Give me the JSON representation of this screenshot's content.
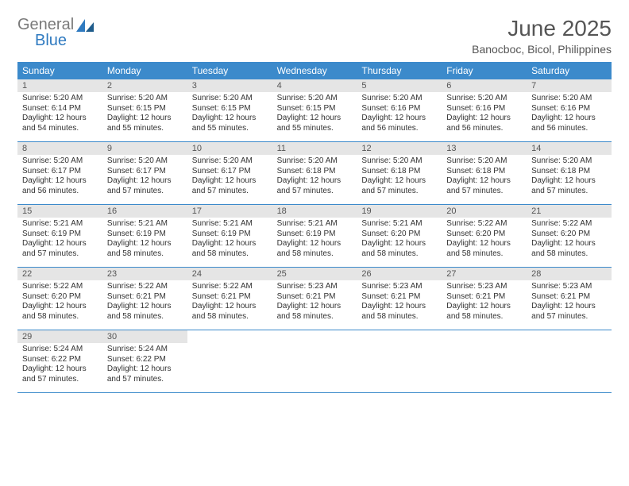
{
  "logo": {
    "text1": "General",
    "text2": "Blue"
  },
  "title": "June 2025",
  "subtitle": "Banocboc, Bicol, Philippines",
  "colors": {
    "header_bg": "#3c8acb",
    "header_text": "#ffffff",
    "daynum_bg": "#e5e5e5",
    "daynum_text": "#555555",
    "divider": "#3c8acb",
    "logo_gray": "#7a7a7a",
    "logo_blue": "#2f7ac0",
    "title_color": "#555555",
    "body_text": "#333333",
    "background": "#ffffff"
  },
  "typography": {
    "title_fontsize": 28,
    "subtitle_fontsize": 14,
    "weekday_fontsize": 12,
    "daynum_fontsize": 11,
    "cell_fontsize": 10
  },
  "weekdays": [
    "Sunday",
    "Monday",
    "Tuesday",
    "Wednesday",
    "Thursday",
    "Friday",
    "Saturday"
  ],
  "weeks": [
    [
      {
        "day": "1",
        "sunrise": "Sunrise: 5:20 AM",
        "sunset": "Sunset: 6:14 PM",
        "daylight": "Daylight: 12 hours and 54 minutes."
      },
      {
        "day": "2",
        "sunrise": "Sunrise: 5:20 AM",
        "sunset": "Sunset: 6:15 PM",
        "daylight": "Daylight: 12 hours and 55 minutes."
      },
      {
        "day": "3",
        "sunrise": "Sunrise: 5:20 AM",
        "sunset": "Sunset: 6:15 PM",
        "daylight": "Daylight: 12 hours and 55 minutes."
      },
      {
        "day": "4",
        "sunrise": "Sunrise: 5:20 AM",
        "sunset": "Sunset: 6:15 PM",
        "daylight": "Daylight: 12 hours and 55 minutes."
      },
      {
        "day": "5",
        "sunrise": "Sunrise: 5:20 AM",
        "sunset": "Sunset: 6:16 PM",
        "daylight": "Daylight: 12 hours and 56 minutes."
      },
      {
        "day": "6",
        "sunrise": "Sunrise: 5:20 AM",
        "sunset": "Sunset: 6:16 PM",
        "daylight": "Daylight: 12 hours and 56 minutes."
      },
      {
        "day": "7",
        "sunrise": "Sunrise: 5:20 AM",
        "sunset": "Sunset: 6:16 PM",
        "daylight": "Daylight: 12 hours and 56 minutes."
      }
    ],
    [
      {
        "day": "8",
        "sunrise": "Sunrise: 5:20 AM",
        "sunset": "Sunset: 6:17 PM",
        "daylight": "Daylight: 12 hours and 56 minutes."
      },
      {
        "day": "9",
        "sunrise": "Sunrise: 5:20 AM",
        "sunset": "Sunset: 6:17 PM",
        "daylight": "Daylight: 12 hours and 57 minutes."
      },
      {
        "day": "10",
        "sunrise": "Sunrise: 5:20 AM",
        "sunset": "Sunset: 6:17 PM",
        "daylight": "Daylight: 12 hours and 57 minutes."
      },
      {
        "day": "11",
        "sunrise": "Sunrise: 5:20 AM",
        "sunset": "Sunset: 6:18 PM",
        "daylight": "Daylight: 12 hours and 57 minutes."
      },
      {
        "day": "12",
        "sunrise": "Sunrise: 5:20 AM",
        "sunset": "Sunset: 6:18 PM",
        "daylight": "Daylight: 12 hours and 57 minutes."
      },
      {
        "day": "13",
        "sunrise": "Sunrise: 5:20 AM",
        "sunset": "Sunset: 6:18 PM",
        "daylight": "Daylight: 12 hours and 57 minutes."
      },
      {
        "day": "14",
        "sunrise": "Sunrise: 5:20 AM",
        "sunset": "Sunset: 6:18 PM",
        "daylight": "Daylight: 12 hours and 57 minutes."
      }
    ],
    [
      {
        "day": "15",
        "sunrise": "Sunrise: 5:21 AM",
        "sunset": "Sunset: 6:19 PM",
        "daylight": "Daylight: 12 hours and 57 minutes."
      },
      {
        "day": "16",
        "sunrise": "Sunrise: 5:21 AM",
        "sunset": "Sunset: 6:19 PM",
        "daylight": "Daylight: 12 hours and 58 minutes."
      },
      {
        "day": "17",
        "sunrise": "Sunrise: 5:21 AM",
        "sunset": "Sunset: 6:19 PM",
        "daylight": "Daylight: 12 hours and 58 minutes."
      },
      {
        "day": "18",
        "sunrise": "Sunrise: 5:21 AM",
        "sunset": "Sunset: 6:19 PM",
        "daylight": "Daylight: 12 hours and 58 minutes."
      },
      {
        "day": "19",
        "sunrise": "Sunrise: 5:21 AM",
        "sunset": "Sunset: 6:20 PM",
        "daylight": "Daylight: 12 hours and 58 minutes."
      },
      {
        "day": "20",
        "sunrise": "Sunrise: 5:22 AM",
        "sunset": "Sunset: 6:20 PM",
        "daylight": "Daylight: 12 hours and 58 minutes."
      },
      {
        "day": "21",
        "sunrise": "Sunrise: 5:22 AM",
        "sunset": "Sunset: 6:20 PM",
        "daylight": "Daylight: 12 hours and 58 minutes."
      }
    ],
    [
      {
        "day": "22",
        "sunrise": "Sunrise: 5:22 AM",
        "sunset": "Sunset: 6:20 PM",
        "daylight": "Daylight: 12 hours and 58 minutes."
      },
      {
        "day": "23",
        "sunrise": "Sunrise: 5:22 AM",
        "sunset": "Sunset: 6:21 PM",
        "daylight": "Daylight: 12 hours and 58 minutes."
      },
      {
        "day": "24",
        "sunrise": "Sunrise: 5:22 AM",
        "sunset": "Sunset: 6:21 PM",
        "daylight": "Daylight: 12 hours and 58 minutes."
      },
      {
        "day": "25",
        "sunrise": "Sunrise: 5:23 AM",
        "sunset": "Sunset: 6:21 PM",
        "daylight": "Daylight: 12 hours and 58 minutes."
      },
      {
        "day": "26",
        "sunrise": "Sunrise: 5:23 AM",
        "sunset": "Sunset: 6:21 PM",
        "daylight": "Daylight: 12 hours and 58 minutes."
      },
      {
        "day": "27",
        "sunrise": "Sunrise: 5:23 AM",
        "sunset": "Sunset: 6:21 PM",
        "daylight": "Daylight: 12 hours and 58 minutes."
      },
      {
        "day": "28",
        "sunrise": "Sunrise: 5:23 AM",
        "sunset": "Sunset: 6:21 PM",
        "daylight": "Daylight: 12 hours and 57 minutes."
      }
    ],
    [
      {
        "day": "29",
        "sunrise": "Sunrise: 5:24 AM",
        "sunset": "Sunset: 6:22 PM",
        "daylight": "Daylight: 12 hours and 57 minutes."
      },
      {
        "day": "30",
        "sunrise": "Sunrise: 5:24 AM",
        "sunset": "Sunset: 6:22 PM",
        "daylight": "Daylight: 12 hours and 57 minutes."
      },
      {
        "empty": true
      },
      {
        "empty": true
      },
      {
        "empty": true
      },
      {
        "empty": true
      },
      {
        "empty": true
      }
    ]
  ]
}
